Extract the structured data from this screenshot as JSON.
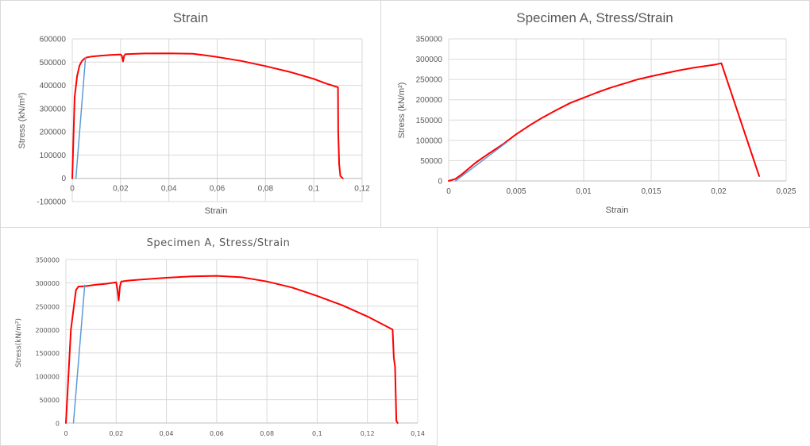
{
  "colors": {
    "main_series": "#ff0000",
    "fit_line": "#5b9bd5",
    "grid": "#d9d9d9",
    "text": "#595959"
  },
  "chart_data": [
    {
      "type": "line",
      "title": "Strain",
      "xlabel": "Strain",
      "ylabel": "Stress (kN/m²)",
      "xlim": [
        0,
        0.12
      ],
      "ylim": [
        -100000,
        600000
      ],
      "x_ticks": [
        "0",
        "0,02",
        "0,04",
        "0,06",
        "0,08",
        "0,1",
        "0,12"
      ],
      "y_ticks": [
        "-100000",
        "0",
        "100000",
        "200000",
        "300000",
        "400000",
        "500000",
        "600000"
      ],
      "grid": true,
      "series": [
        {
          "color": "#ff0000",
          "x": [
            0,
            0.001,
            0.002,
            0.003,
            0.004,
            0.005,
            0.006,
            0.008,
            0.012,
            0.016,
            0.02,
            0.0205,
            0.021,
            0.0215,
            0.022,
            0.03,
            0.04,
            0.05,
            0.06,
            0.07,
            0.08,
            0.09,
            0.1,
            0.105,
            0.11,
            0.1101,
            0.1105,
            0.111,
            0.112
          ],
          "y": [
            0,
            350000,
            440000,
            485000,
            505000,
            515000,
            520000,
            524000,
            528000,
            531000,
            533000,
            528000,
            503000,
            528000,
            534000,
            537000,
            538000,
            536000,
            522000,
            505000,
            483000,
            458000,
            428000,
            408000,
            392000,
            200000,
            60000,
            10000,
            0
          ]
        },
        {
          "color": "#5b9bd5",
          "x": [
            0.0015,
            0.0055
          ],
          "y": [
            0,
            520000
          ]
        }
      ]
    },
    {
      "type": "line",
      "title": "Specimen A, Stress/Strain",
      "xlabel": "Strain",
      "ylabel": "Stress (kN/m²)",
      "xlim": [
        0,
        0.025
      ],
      "ylim": [
        0,
        350000
      ],
      "x_ticks": [
        "0",
        "0,005",
        "0,01",
        "0,015",
        "0,02",
        "0,025"
      ],
      "y_ticks": [
        "0",
        "50000",
        "100000",
        "150000",
        "200000",
        "250000",
        "300000",
        "350000"
      ],
      "grid": true,
      "series": [
        {
          "color": "#ff0000",
          "x": [
            0,
            0.0005,
            0.001,
            0.002,
            0.003,
            0.004,
            0.005,
            0.006,
            0.007,
            0.008,
            0.009,
            0.01,
            0.011,
            0.012,
            0.013,
            0.014,
            0.015,
            0.016,
            0.017,
            0.018,
            0.019,
            0.0198,
            0.0202,
            0.023
          ],
          "y": [
            0,
            5000,
            17000,
            45000,
            68000,
            90000,
            115000,
            137000,
            157000,
            175000,
            192000,
            205000,
            218000,
            230000,
            240000,
            250000,
            258000,
            265000,
            272000,
            278000,
            283000,
            287000,
            290000,
            12000
          ]
        },
        {
          "color": "#5b9bd5",
          "x": [
            0.0005,
            0.0043
          ],
          "y": [
            0,
            95000
          ]
        }
      ]
    },
    {
      "type": "line",
      "title": "Specimen A, Stress/Strain",
      "xlabel": "",
      "ylabel": "Stress(kN/m²)",
      "xlim": [
        0,
        0.14
      ],
      "ylim": [
        0,
        350000
      ],
      "x_ticks": [
        "0",
        "0,02",
        "0,04",
        "0,06",
        "0,08",
        "0,1",
        "0,12",
        "0,14"
      ],
      "y_ticks": [
        "0",
        "50000",
        "100000",
        "150000",
        "200000",
        "250000",
        "300000",
        "350000"
      ],
      "grid": true,
      "series": [
        {
          "color": "#ff0000",
          "x": [
            0,
            0.002,
            0.004,
            0.005,
            0.008,
            0.012,
            0.016,
            0.02,
            0.0205,
            0.021,
            0.0215,
            0.022,
            0.025,
            0.03,
            0.04,
            0.05,
            0.06,
            0.07,
            0.08,
            0.09,
            0.1,
            0.11,
            0.12,
            0.13,
            0.1305,
            0.131,
            0.1315,
            0.132
          ],
          "y": [
            0,
            200000,
            285000,
            292000,
            293000,
            296000,
            298000,
            301000,
            285000,
            262000,
            292000,
            303000,
            305000,
            307000,
            311000,
            314000,
            315000,
            312000,
            303000,
            290000,
            272000,
            252000,
            228000,
            200000,
            140000,
            120000,
            5000,
            0
          ]
        },
        {
          "color": "#5b9bd5",
          "x": [
            0.003,
            0.0075
          ],
          "y": [
            0,
            295000
          ]
        }
      ]
    }
  ]
}
